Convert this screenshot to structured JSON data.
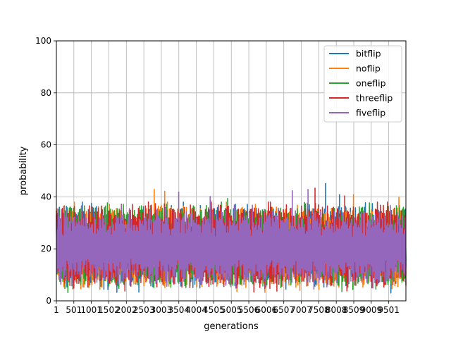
{
  "chart_data": {
    "type": "line",
    "xlabel": "generations",
    "ylabel": "probability",
    "x_range": [
      1,
      20000
    ],
    "ylim": [
      0,
      100
    ],
    "grid": true,
    "legend_position": "top-right",
    "x_tick_values": [
      1,
      1001,
      2002,
      3003,
      4004,
      5005,
      6006,
      7007,
      8008,
      9009,
      10010,
      11011,
      12012,
      13013,
      14014,
      15015,
      16016,
      17017,
      18018,
      19019
    ],
    "x_tick_labels": [
      "1",
      "501",
      "1001",
      "1502",
      "2002",
      "2503",
      "3003",
      "3504",
      "4004",
      "4505",
      "5005",
      "5506",
      "6006",
      "6507",
      "7007",
      "7508",
      "8008",
      "8509",
      "9009",
      "9501"
    ],
    "y_ticks": [
      0,
      20,
      40,
      60,
      80,
      100
    ],
    "y_tick_labels": [
      "0",
      "20",
      "40",
      "60",
      "80",
      "100"
    ],
    "series": [
      {
        "name": "bitflip",
        "color": "#1f77b4",
        "typical_low": 7,
        "typical_high": 35,
        "peaks": [
          {
            "x": 15400,
            "y": 45.3
          },
          {
            "x": 16200,
            "y": 41
          }
        ]
      },
      {
        "name": "noflip",
        "color": "#ff7f0e",
        "typical_low": 7,
        "typical_high": 35,
        "peaks": [
          {
            "x": 5600,
            "y": 43
          },
          {
            "x": 6200,
            "y": 42.3
          },
          {
            "x": 17000,
            "y": 41
          },
          {
            "x": 19600,
            "y": 40
          }
        ]
      },
      {
        "name": "oneflip",
        "color": "#2ca02c",
        "typical_low": 7,
        "typical_high": 35,
        "peaks": [
          {
            "x": 9800,
            "y": 39.5
          },
          {
            "x": 14200,
            "y": 38
          }
        ]
      },
      {
        "name": "threeflip",
        "color": "#d62728",
        "typical_low": 7,
        "typical_high": 35,
        "peaks": [
          {
            "x": 14800,
            "y": 43.5
          },
          {
            "x": 16500,
            "y": 40.5
          }
        ]
      },
      {
        "name": "fiveflip",
        "color": "#9467bd",
        "typical_low": 8,
        "typical_high": 33,
        "peaks": [
          {
            "x": 7000,
            "y": 42
          },
          {
            "x": 8800,
            "y": 40.3
          },
          {
            "x": 13500,
            "y": 42.5
          },
          {
            "x": 14400,
            "y": 43
          }
        ]
      }
    ]
  }
}
